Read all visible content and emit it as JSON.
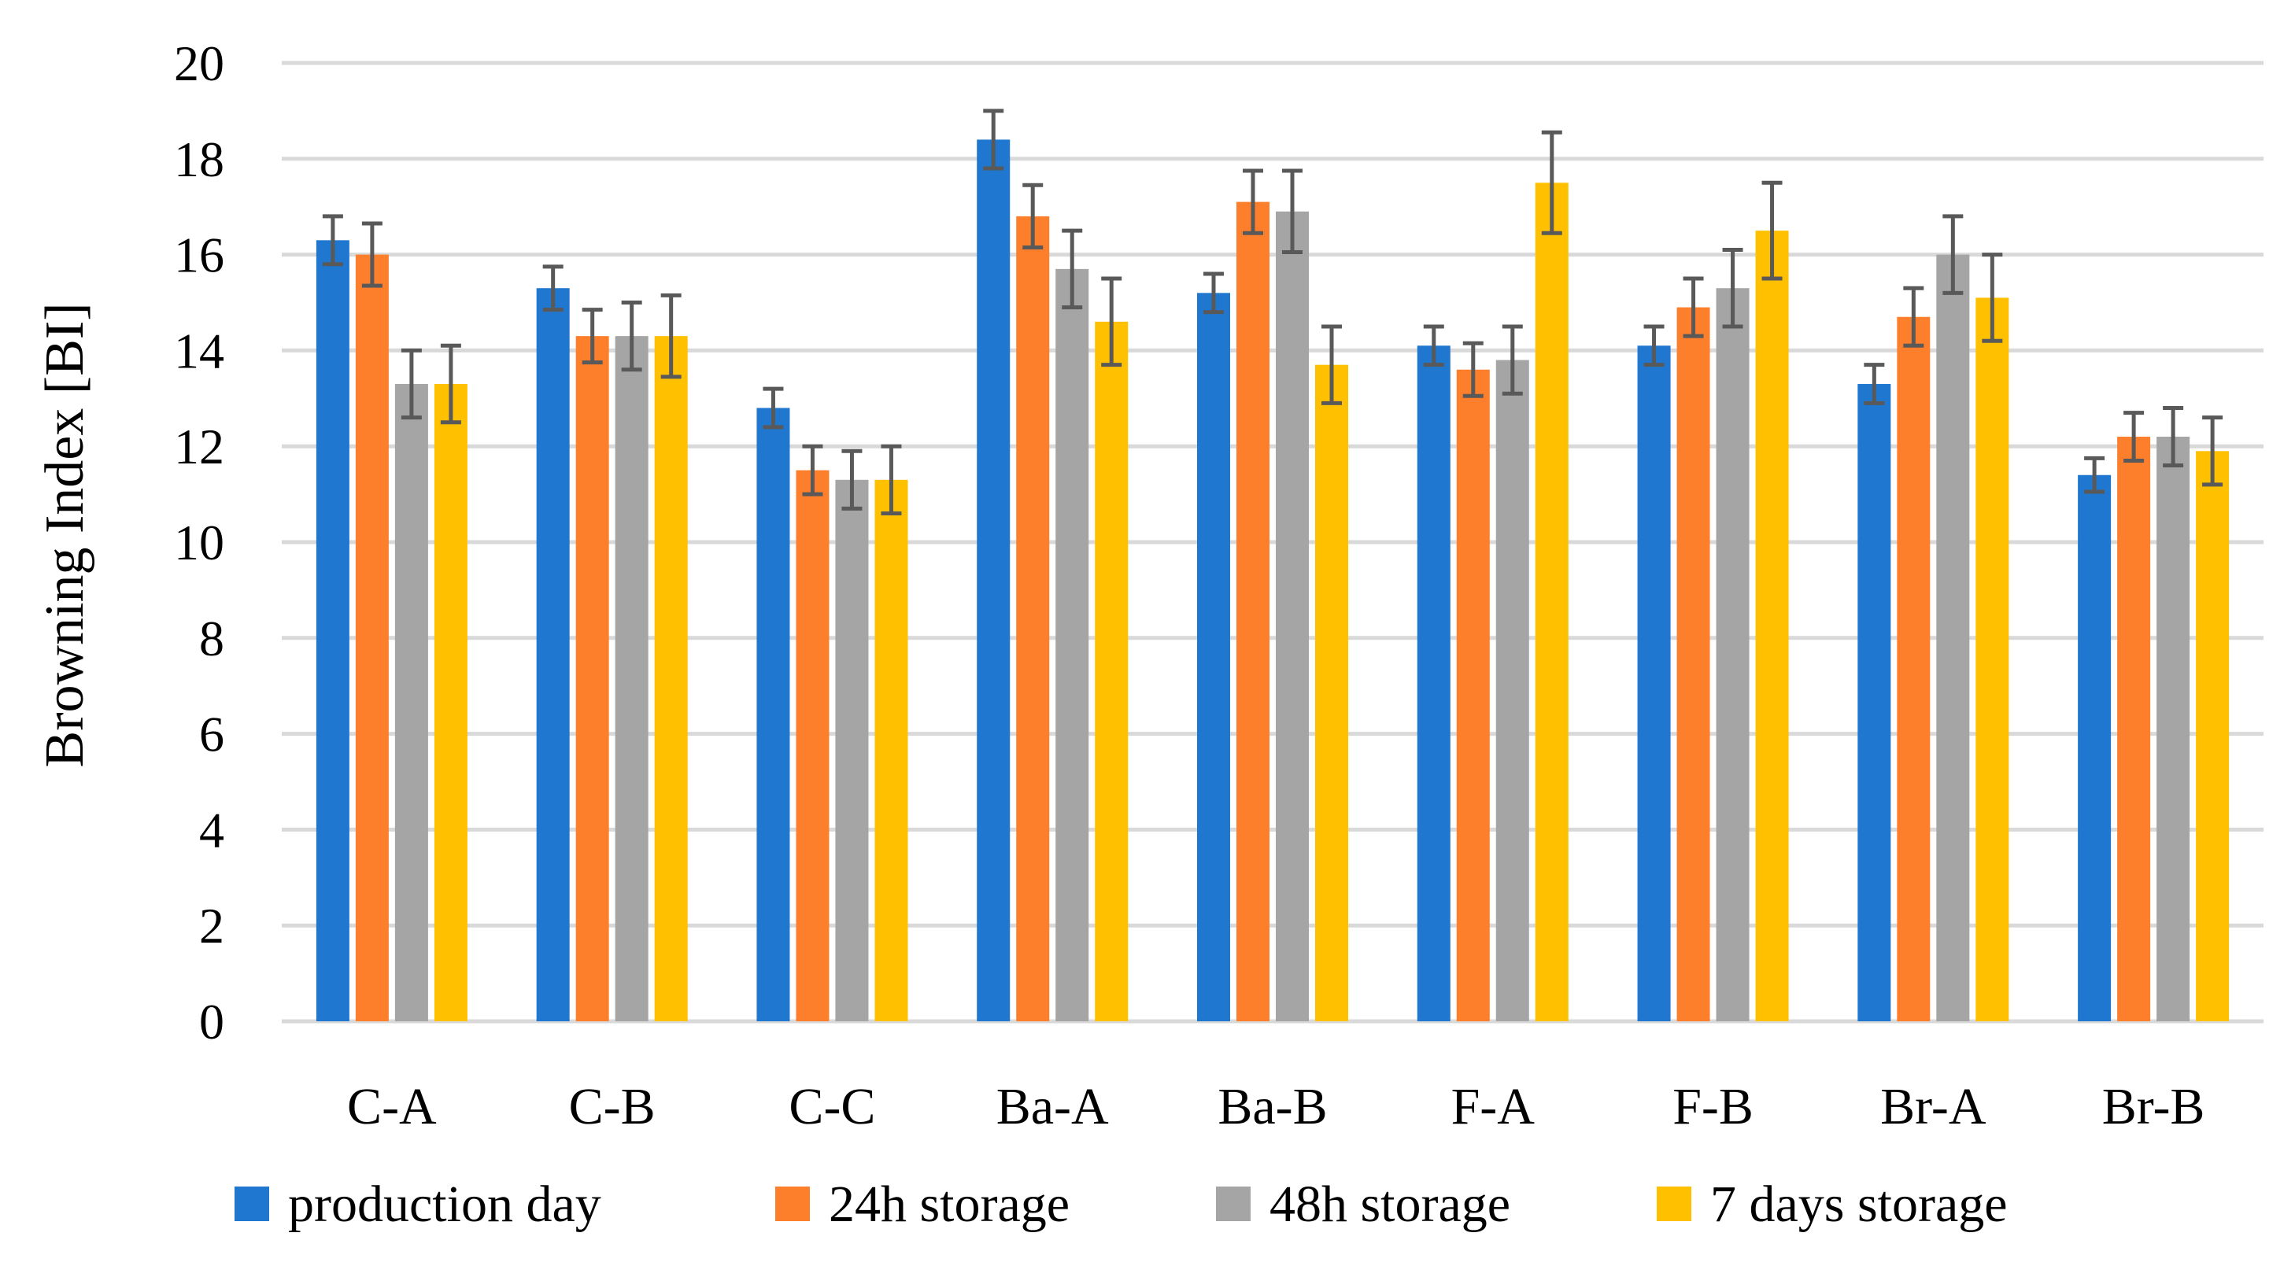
{
  "chart_data": {
    "type": "bar",
    "title": "",
    "xlabel": "",
    "ylabel": "Browning Index [BI]",
    "ylim": [
      0,
      20
    ],
    "yticks": [
      0,
      2,
      4,
      6,
      8,
      10,
      12,
      14,
      16,
      18,
      20
    ],
    "tick_labels": [
      "0",
      "2",
      "4",
      "6",
      "8",
      "10",
      "12",
      "14",
      "16",
      "18",
      "20"
    ],
    "grid": true,
    "legend_position": "bottom",
    "categories": [
      "C-A",
      "C-B",
      "C-C",
      "Ba-A",
      "Ba-B",
      "F-A",
      "F-B",
      "Br-A",
      "Br-B"
    ],
    "series": [
      {
        "name": "production day",
        "color": "#1f77cf",
        "values": [
          16.3,
          15.3,
          12.8,
          18.4,
          15.2,
          14.1,
          14.1,
          13.3,
          11.4
        ],
        "errors": [
          0.5,
          0.45,
          0.4,
          0.6,
          0.4,
          0.4,
          0.4,
          0.4,
          0.35
        ]
      },
      {
        "name": "24h storage",
        "color": "#fd7f2b",
        "values": [
          16.0,
          14.3,
          11.5,
          16.8,
          17.1,
          13.6,
          14.9,
          14.7,
          12.2
        ],
        "errors": [
          0.65,
          0.55,
          0.5,
          0.65,
          0.65,
          0.55,
          0.6,
          0.6,
          0.5
        ]
      },
      {
        "name": "48h storage",
        "color": "#a5a5a5",
        "values": [
          13.3,
          14.3,
          11.3,
          15.7,
          16.9,
          13.8,
          15.3,
          16.0,
          12.2
        ],
        "errors": [
          0.7,
          0.7,
          0.6,
          0.8,
          0.85,
          0.7,
          0.8,
          0.8,
          0.6
        ]
      },
      {
        "name": "7 days storage",
        "color": "#ffc000",
        "values": [
          13.3,
          14.3,
          11.3,
          14.6,
          13.7,
          17.5,
          16.5,
          15.1,
          11.9
        ],
        "errors": [
          0.8,
          0.85,
          0.7,
          0.9,
          0.8,
          1.05,
          1.0,
          0.9,
          0.7
        ]
      }
    ]
  }
}
